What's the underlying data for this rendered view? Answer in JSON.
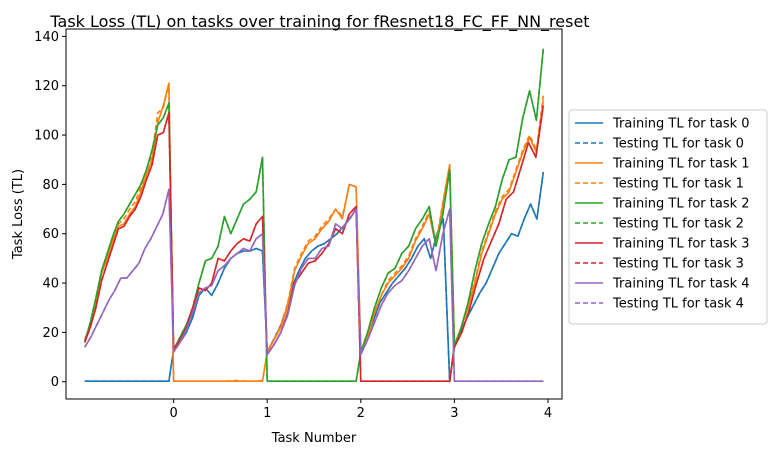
{
  "chart_data": {
    "type": "line",
    "title": "Task Loss (TL) on tasks over training for fResnet18_FC_FF_NN_reset",
    "xlabel": "Task Number",
    "ylabel": "Task Loss (TL)",
    "xlim": [
      -1.15,
      4.15
    ],
    "ylim": [
      -7,
      143
    ],
    "xticks": [
      0,
      1,
      2,
      3,
      4
    ],
    "yticks": [
      0,
      20,
      40,
      60,
      80,
      100,
      120,
      140
    ],
    "legend_position": "right (outside plot)",
    "grid": false,
    "colors": {
      "task0": "#1f77b4",
      "task1": "#ff7f0e",
      "task2": "#2ca02c",
      "task3": "#d62728",
      "task4": "#9467bd"
    },
    "segments": [
      {
        "task": 0,
        "x_start": -0.95,
        "x_end": -0.05
      },
      {
        "task": 1,
        "x_start": 0.0,
        "x_end": 0.95
      },
      {
        "task": 2,
        "x_start": 1.0,
        "x_end": 1.95
      },
      {
        "task": 3,
        "x_start": 2.0,
        "x_end": 2.95
      },
      {
        "task": 4,
        "x_start": 3.0,
        "x_end": 3.95
      }
    ],
    "series": [
      {
        "name": "Training TL for task 0",
        "task": 0,
        "dash": false,
        "values": [
          [
            0.2,
            0.2,
            0.2,
            0.2,
            0.2,
            0.2,
            0.2,
            0.2,
            0.2,
            0.2,
            0.2,
            0.2,
            0.2,
            0.2,
            0.2,
            0.2,
            0.2,
            0.2,
            0.2
          ],
          [
            13,
            16,
            20,
            26,
            35,
            38,
            35,
            40,
            46,
            50,
            52,
            53,
            53,
            54,
            53
          ],
          [
            12,
            17,
            22,
            29,
            39,
            45,
            50,
            53,
            55,
            56,
            58,
            60,
            63,
            66,
            70
          ],
          [
            12,
            18,
            25,
            32,
            36,
            40,
            43,
            46,
            50,
            55,
            58,
            50,
            60,
            66,
            0
          ],
          [
            15,
            20,
            26,
            31,
            36,
            40,
            46,
            52,
            56,
            60,
            59,
            66,
            72,
            66,
            85
          ]
        ]
      },
      {
        "name": "Testing TL for task 0",
        "task": 0,
        "dash": true,
        "values": [
          [
            0.2,
            0.2,
            0.2,
            0.2,
            0.2,
            0.2,
            0.2,
            0.2,
            0.2,
            0.2,
            0.2,
            0.2,
            0.2,
            0.2,
            0.2,
            0.2,
            0.2,
            0.2,
            0.2
          ],
          [
            13,
            16,
            20,
            26,
            35,
            38,
            35,
            40,
            46,
            50,
            52,
            53,
            53,
            54,
            53
          ],
          [
            12,
            17,
            22,
            29,
            39,
            45,
            50,
            53,
            55,
            56,
            58,
            60,
            63,
            66,
            70
          ],
          [
            12,
            18,
            25,
            32,
            36,
            40,
            43,
            46,
            50,
            55,
            58,
            50,
            60,
            66,
            0
          ],
          [
            15,
            20,
            26,
            31,
            36,
            40,
            46,
            52,
            56,
            60,
            59,
            66,
            72,
            66,
            85
          ]
        ]
      },
      {
        "name": "Training TL for task 1",
        "task": 1,
        "dash": false,
        "values": [
          [
            17,
            23,
            32,
            44,
            50,
            57,
            63,
            64,
            68,
            71,
            77,
            84,
            90,
            105,
            112,
            121
          ],
          [
            0.2,
            0.2,
            0.2,
            0.2,
            0.2,
            0.2,
            0.2,
            0.2,
            0.2,
            0.2,
            0.2,
            0.2,
            0.2,
            0.2,
            0.2,
            0.2
          ],
          [
            12,
            17,
            22,
            31,
            45,
            51,
            56,
            58,
            62,
            65,
            70,
            66,
            80,
            79
          ],
          [
            12,
            18,
            28,
            35,
            40,
            43,
            46,
            50,
            57,
            62,
            68,
            55,
            72,
            88
          ],
          [
            15,
            22,
            30,
            40,
            52,
            60,
            68,
            74,
            77,
            85,
            93,
            99,
            93,
            114
          ]
        ]
      },
      {
        "name": "Testing TL for task 1",
        "task": 1,
        "dash": true,
        "values": [
          [
            17,
            23,
            33,
            45,
            51,
            58,
            64,
            66,
            70,
            73,
            79,
            86,
            92,
            109,
            111,
            121
          ],
          [
            0.2,
            0.2,
            0.2,
            0.2,
            0.2,
            0.2,
            0.2,
            0.2,
            0.2,
            0.2,
            0.5,
            0.5,
            0.2,
            0.2,
            0.2,
            0.5
          ],
          [
            12,
            17,
            23,
            32,
            46,
            52,
            57,
            59,
            63,
            66,
            70,
            67,
            80,
            79
          ],
          [
            12,
            18,
            28,
            35,
            41,
            44,
            47,
            51,
            58,
            63,
            69,
            56,
            73,
            88
          ],
          [
            15,
            22,
            31,
            41,
            53,
            61,
            69,
            75,
            78,
            86,
            94,
            100,
            94,
            116
          ]
        ]
      },
      {
        "name": "Training TL for task 2",
        "task": 2,
        "dash": false,
        "values": [
          [
            16,
            24,
            34,
            45,
            52,
            59,
            65,
            68,
            72,
            76,
            80,
            86,
            94,
            104,
            107,
            113
          ],
          [
            13,
            18,
            23,
            30,
            40,
            49,
            50,
            55,
            67,
            60,
            66,
            72,
            74,
            77,
            91
          ],
          [
            0.2,
            0.2,
            0.2,
            0.2,
            0.2,
            0.2,
            0.2,
            0.2,
            0.2,
            0.2,
            0.2,
            0.2,
            0.2,
            0.2,
            0.2
          ],
          [
            12,
            20,
            30,
            38,
            44,
            46,
            52,
            55,
            62,
            66,
            71,
            55,
            68,
            86
          ],
          [
            14,
            22,
            32,
            45,
            56,
            64,
            71,
            82,
            90,
            91,
            107,
            118,
            106,
            135
          ]
        ]
      },
      {
        "name": "Testing TL for task 2",
        "task": 2,
        "dash": true,
        "values": [
          [
            16,
            24,
            34,
            45,
            52,
            59,
            65,
            68,
            72,
            76,
            80,
            86,
            94,
            104,
            107,
            113
          ],
          [
            13,
            18,
            23,
            30,
            40,
            49,
            50,
            55,
            67,
            60,
            66,
            72,
            74,
            77,
            91
          ],
          [
            0.2,
            0.2,
            0.2,
            0.2,
            0.2,
            0.2,
            0.2,
            0.2,
            0.2,
            0.2,
            0.2,
            0.2,
            0.2,
            0.2,
            0.2
          ],
          [
            12,
            20,
            30,
            38,
            44,
            46,
            52,
            55,
            62,
            66,
            71,
            55,
            68,
            86
          ],
          [
            14,
            22,
            32,
            45,
            56,
            64,
            71,
            82,
            90,
            91,
            107,
            118,
            106,
            135
          ]
        ]
      },
      {
        "name": "Training TL for task 3",
        "task": 3,
        "dash": false,
        "values": [
          [
            16,
            22,
            30,
            41,
            48,
            55,
            62,
            63,
            67,
            70,
            75,
            82,
            88,
            100,
            101,
            109
          ],
          [
            13,
            17,
            22,
            30,
            38,
            37,
            40,
            50,
            49,
            53,
            56,
            58,
            57,
            64,
            67
          ],
          [
            11,
            15,
            20,
            28,
            40,
            44,
            48,
            49,
            52,
            56,
            62,
            60,
            68,
            71
          ],
          [
            0.2,
            0.2,
            0.2,
            0.2,
            0.2,
            0.2,
            0.2,
            0.2,
            0.2,
            0.2,
            0.2,
            0.2,
            0.2,
            0.2,
            0.2
          ],
          [
            14,
            20,
            29,
            40,
            50,
            57,
            64,
            74,
            77,
            87,
            97,
            91,
            112
          ]
        ]
      },
      {
        "name": "Testing TL for task 3",
        "task": 3,
        "dash": true,
        "values": [
          [
            16,
            22,
            30,
            41,
            48,
            55,
            62,
            63,
            67,
            70,
            75,
            82,
            88,
            100,
            101,
            109
          ],
          [
            13,
            17,
            22,
            30,
            38,
            37,
            40,
            50,
            49,
            53,
            56,
            58,
            57,
            64,
            67
          ],
          [
            11,
            15,
            20,
            28,
            40,
            44,
            48,
            49,
            52,
            56,
            62,
            60,
            68,
            71
          ],
          [
            0.2,
            0.2,
            0.2,
            0.2,
            0.2,
            0.2,
            0.2,
            0.2,
            0.2,
            0.2,
            0.2,
            0.2,
            0.2,
            0.2,
            0.2
          ],
          [
            14,
            20,
            29,
            40,
            50,
            57,
            64,
            74,
            77,
            87,
            97,
            91,
            112
          ]
        ]
      },
      {
        "name": "Training TL for task 4",
        "task": 4,
        "dash": false,
        "values": [
          [
            14,
            18,
            23,
            28,
            33,
            37,
            42,
            42,
            45,
            48,
            54,
            58,
            63,
            68,
            78
          ],
          [
            12,
            16,
            21,
            28,
            36,
            38,
            39,
            45,
            47,
            50,
            52,
            54,
            53,
            58,
            60
          ],
          [
            11,
            15,
            20,
            27,
            39,
            46,
            50,
            50,
            54,
            55,
            64,
            62,
            66,
            70
          ],
          [
            11,
            17,
            24,
            31,
            36,
            39,
            41,
            45,
            50,
            55,
            58,
            45,
            60,
            70
          ],
          [
            0.2,
            0.2,
            0.2,
            0.2,
            0.2,
            0.2,
            0.2,
            0.2,
            0.2,
            0.2,
            0.2,
            0.2,
            0.2,
            0.2,
            0.2
          ]
        ]
      },
      {
        "name": "Testing TL for task 4",
        "task": 4,
        "dash": true,
        "values": [
          [
            14,
            18,
            23,
            28,
            33,
            37,
            42,
            42,
            45,
            48,
            54,
            58,
            63,
            68,
            78
          ],
          [
            12,
            16,
            21,
            28,
            36,
            38,
            39,
            45,
            47,
            50,
            52,
            54,
            53,
            58,
            60
          ],
          [
            11,
            15,
            20,
            27,
            39,
            46,
            50,
            50,
            54,
            55,
            64,
            62,
            66,
            70
          ],
          [
            11,
            17,
            24,
            31,
            36,
            39,
            41,
            45,
            50,
            55,
            58,
            45,
            60,
            70
          ],
          [
            0.2,
            0.2,
            0.2,
            0.2,
            0.2,
            0.2,
            0.2,
            0.2,
            0.2,
            0.2,
            0.2,
            0.2,
            0.2,
            0.2,
            0.2
          ]
        ]
      }
    ]
  }
}
